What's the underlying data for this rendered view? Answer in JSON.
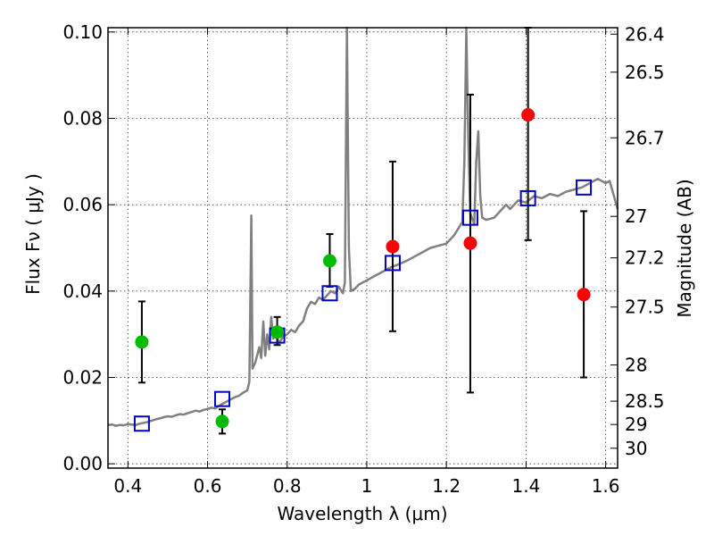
{
  "chart_data": {
    "type": "scatter",
    "xlabel": "Wavelength  λ (μm)",
    "ylabel": "Flux  Fν ( μJy )",
    "ylabel_right": "Magnitude (AB)",
    "xlim": [
      0.35,
      1.63
    ],
    "ylim": [
      -0.001,
      0.101
    ],
    "grid": true,
    "x_ticks": [
      0.4,
      0.6,
      0.8,
      1.0,
      1.2,
      1.4,
      1.6
    ],
    "x_tick_labels": [
      "0.4",
      "0.6",
      "0.8",
      "1",
      "1.2",
      "1.4",
      "1.6"
    ],
    "y_ticks": [
      0.0,
      0.02,
      0.04,
      0.06,
      0.08,
      0.1
    ],
    "y_tick_labels": [
      "0.00",
      "0.02",
      "0.04",
      "0.06",
      "0.08",
      "0.10"
    ],
    "right_ticks": [
      {
        "label": "26.4",
        "flux": 0.0995
      },
      {
        "label": "26.5",
        "flux": 0.0907
      },
      {
        "label": "26.7",
        "flux": 0.0755
      },
      {
        "label": "27",
        "flux": 0.0573
      },
      {
        "label": "27.2",
        "flux": 0.0477
      },
      {
        "label": "27.5",
        "flux": 0.0363
      },
      {
        "label": "28",
        "flux": 0.0229
      },
      {
        "label": "28.5",
        "flux": 0.0145
      },
      {
        "label": "29",
        "flux": 0.0091
      },
      {
        "label": "30",
        "flux": 0.0036
      }
    ],
    "colors": {
      "model": "#808080",
      "boxes": "#0000cc",
      "green": "#00bb00",
      "red": "#ff0000",
      "errorbar": "#000000"
    },
    "series": [
      {
        "kind": "line",
        "values": [
          [
            0.35,
            0.009
          ],
          [
            0.36,
            0.0091
          ],
          [
            0.37,
            0.0088
          ],
          [
            0.38,
            0.009
          ],
          [
            0.39,
            0.0089
          ],
          [
            0.4,
            0.0092
          ],
          [
            0.41,
            0.0091
          ],
          [
            0.42,
            0.009
          ],
          [
            0.43,
            0.0093
          ],
          [
            0.44,
            0.0095
          ],
          [
            0.45,
            0.0097
          ],
          [
            0.46,
            0.01
          ],
          [
            0.47,
            0.0103
          ],
          [
            0.48,
            0.0105
          ],
          [
            0.49,
            0.0108
          ],
          [
            0.5,
            0.011
          ],
          [
            0.51,
            0.0109
          ],
          [
            0.52,
            0.0112
          ],
          [
            0.53,
            0.0115
          ],
          [
            0.54,
            0.0114
          ],
          [
            0.55,
            0.0117
          ],
          [
            0.56,
            0.012
          ],
          [
            0.57,
            0.0123
          ],
          [
            0.58,
            0.0121
          ],
          [
            0.59,
            0.0125
          ],
          [
            0.6,
            0.0127
          ],
          [
            0.61,
            0.013
          ],
          [
            0.62,
            0.0128
          ],
          [
            0.63,
            0.0135
          ],
          [
            0.64,
            0.014
          ],
          [
            0.65,
            0.0145
          ],
          [
            0.66,
            0.015
          ],
          [
            0.67,
            0.0155
          ],
          [
            0.68,
            0.0158
          ],
          [
            0.69,
            0.0165
          ],
          [
            0.7,
            0.017
          ],
          [
            0.705,
            0.019
          ],
          [
            0.71,
            0.0575
          ],
          [
            0.713,
            0.022
          ],
          [
            0.72,
            0.0235
          ],
          [
            0.73,
            0.027
          ],
          [
            0.735,
            0.0245
          ],
          [
            0.74,
            0.033
          ],
          [
            0.745,
            0.025
          ],
          [
            0.75,
            0.03
          ],
          [
            0.755,
            0.0265
          ],
          [
            0.76,
            0.034
          ],
          [
            0.765,
            0.029
          ],
          [
            0.77,
            0.03
          ],
          [
            0.78,
            0.028
          ],
          [
            0.79,
            0.0295
          ],
          [
            0.8,
            0.03
          ],
          [
            0.81,
            0.031
          ],
          [
            0.82,
            0.0305
          ],
          [
            0.83,
            0.032
          ],
          [
            0.84,
            0.033
          ],
          [
            0.85,
            0.036
          ],
          [
            0.86,
            0.0375
          ],
          [
            0.87,
            0.037
          ],
          [
            0.88,
            0.0385
          ],
          [
            0.89,
            0.038
          ],
          [
            0.9,
            0.039
          ],
          [
            0.91,
            0.04
          ],
          [
            0.92,
            0.0395
          ],
          [
            0.93,
            0.041
          ],
          [
            0.94,
            0.0395
          ],
          [
            0.945,
            0.042
          ],
          [
            0.95,
            0.101
          ],
          [
            0.955,
            0.05
          ],
          [
            0.96,
            0.04
          ],
          [
            0.97,
            0.0405
          ],
          [
            0.98,
            0.0415
          ],
          [
            0.99,
            0.042
          ],
          [
            1.0,
            0.0425
          ],
          [
            1.02,
            0.0435
          ],
          [
            1.04,
            0.0445
          ],
          [
            1.06,
            0.0455
          ],
          [
            1.08,
            0.0462
          ],
          [
            1.1,
            0.047
          ],
          [
            1.12,
            0.048
          ],
          [
            1.14,
            0.049
          ],
          [
            1.16,
            0.05
          ],
          [
            1.18,
            0.0505
          ],
          [
            1.2,
            0.051
          ],
          [
            1.22,
            0.053
          ],
          [
            1.24,
            0.056
          ],
          [
            1.245,
            0.07
          ],
          [
            1.25,
            0.101
          ],
          [
            1.255,
            0.075
          ],
          [
            1.26,
            0.058
          ],
          [
            1.27,
            0.0555
          ],
          [
            1.275,
            0.07
          ],
          [
            1.28,
            0.077
          ],
          [
            1.285,
            0.062
          ],
          [
            1.29,
            0.057
          ],
          [
            1.3,
            0.0565
          ],
          [
            1.32,
            0.057
          ],
          [
            1.34,
            0.059
          ],
          [
            1.35,
            0.06
          ],
          [
            1.36,
            0.059
          ],
          [
            1.38,
            0.061
          ],
          [
            1.4,
            0.0605
          ],
          [
            1.42,
            0.062
          ],
          [
            1.44,
            0.0615
          ],
          [
            1.46,
            0.0625
          ],
          [
            1.48,
            0.062
          ],
          [
            1.5,
            0.063
          ],
          [
            1.52,
            0.0635
          ],
          [
            1.54,
            0.064
          ],
          [
            1.56,
            0.065
          ],
          [
            1.58,
            0.066
          ],
          [
            1.6,
            0.065
          ],
          [
            1.61,
            0.0655
          ],
          [
            1.63,
            0.059
          ]
        ]
      },
      {
        "kind": "open-square",
        "points": [
          [
            0.435,
            0.0093
          ],
          [
            0.637,
            0.015
          ],
          [
            0.775,
            0.0297
          ],
          [
            0.907,
            0.0395
          ],
          [
            1.065,
            0.0465
          ],
          [
            1.26,
            0.057
          ],
          [
            1.405,
            0.0615
          ],
          [
            1.545,
            0.064
          ]
        ]
      },
      {
        "kind": "filled-circle-green",
        "points": [
          {
            "x": 0.435,
            "y": 0.0282,
            "lo": 0.0188,
            "hi": 0.0376
          },
          {
            "x": 0.637,
            "y": 0.0098,
            "lo": 0.007,
            "hi": 0.0126
          },
          {
            "x": 0.775,
            "y": 0.0305,
            "lo": 0.0275,
            "hi": 0.034
          },
          {
            "x": 0.907,
            "y": 0.047,
            "lo": 0.041,
            "hi": 0.0532
          }
        ]
      },
      {
        "kind": "filled-circle-red",
        "points": [
          {
            "x": 1.065,
            "y": 0.0503,
            "lo": 0.0307,
            "hi": 0.07
          },
          {
            "x": 1.26,
            "y": 0.0511,
            "lo": 0.0165,
            "hi": 0.0855
          },
          {
            "x": 1.405,
            "y": 0.0808,
            "lo": 0.0518,
            "hi": 0.101
          },
          {
            "x": 1.545,
            "y": 0.0392,
            "lo": 0.02,
            "hi": 0.0585
          }
        ]
      }
    ]
  }
}
